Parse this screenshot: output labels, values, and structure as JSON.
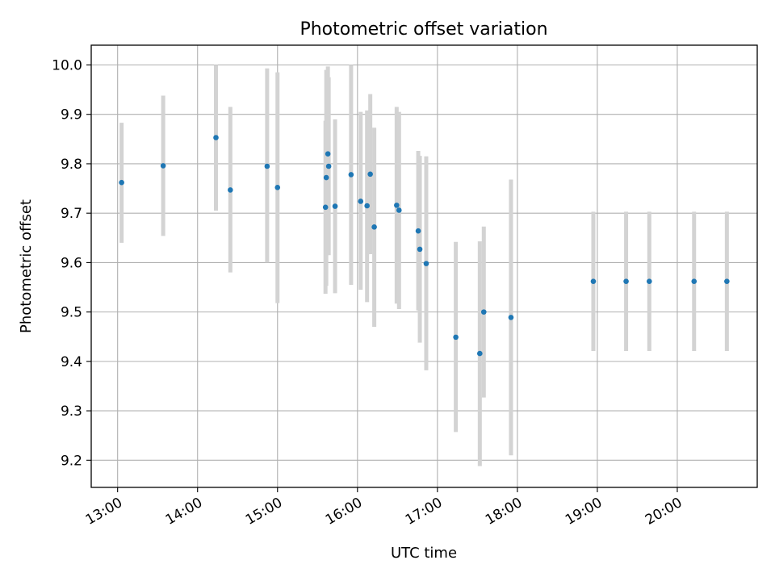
{
  "chart_data": {
    "type": "scatter",
    "title": "Photometric offset variation",
    "xlabel": "UTC time",
    "ylabel": "Photometric offset",
    "x_unit": "hours UTC",
    "xlim": [
      12.67,
      21.0
    ],
    "ylim": [
      9.145,
      10.04
    ],
    "grid": true,
    "x_ticks": [
      {
        "value": 13,
        "label": "13:00"
      },
      {
        "value": 14,
        "label": "14:00"
      },
      {
        "value": 15,
        "label": "15:00"
      },
      {
        "value": 16,
        "label": "16:00"
      },
      {
        "value": 17,
        "label": "17:00"
      },
      {
        "value": 18,
        "label": "18:00"
      },
      {
        "value": 19,
        "label": "19:00"
      },
      {
        "value": 20,
        "label": "20:00"
      }
    ],
    "y_ticks": [
      {
        "value": 9.2,
        "label": "9.2"
      },
      {
        "value": 9.3,
        "label": "9.3"
      },
      {
        "value": 9.4,
        "label": "9.4"
      },
      {
        "value": 9.5,
        "label": "9.5"
      },
      {
        "value": 9.6,
        "label": "9.6"
      },
      {
        "value": 9.7,
        "label": "9.7"
      },
      {
        "value": 9.8,
        "label": "9.8"
      },
      {
        "value": 9.9,
        "label": "9.9"
      },
      {
        "value": 10.0,
        "label": "10.0"
      }
    ],
    "colors": {
      "point": "#1f77b4",
      "errorbar": "#d3d3d3",
      "grid": "#b0b0b0",
      "axes": "#000000"
    },
    "series": [
      {
        "name": "offset",
        "points": [
          {
            "x": 13.05,
            "y": 9.762,
            "ylo": 9.64,
            "yhi": 9.883
          },
          {
            "x": 13.57,
            "y": 9.796,
            "ylo": 9.654,
            "yhi": 9.938
          },
          {
            "x": 14.23,
            "y": 9.853,
            "ylo": 9.705,
            "yhi": 10.0
          },
          {
            "x": 14.41,
            "y": 9.747,
            "ylo": 9.58,
            "yhi": 9.915
          },
          {
            "x": 14.87,
            "y": 9.795,
            "ylo": 9.6,
            "yhi": 9.993
          },
          {
            "x": 15.0,
            "y": 9.752,
            "ylo": 9.518,
            "yhi": 9.985
          },
          {
            "x": 15.6,
            "y": 9.712,
            "ylo": 9.537,
            "yhi": 9.887
          },
          {
            "x": 15.61,
            "y": 9.772,
            "ylo": 9.553,
            "yhi": 9.99
          },
          {
            "x": 15.63,
            "y": 9.82,
            "ylo": 9.65,
            "yhi": 9.997
          },
          {
            "x": 15.64,
            "y": 9.795,
            "ylo": 9.615,
            "yhi": 9.975
          },
          {
            "x": 15.72,
            "y": 9.714,
            "ylo": 9.538,
            "yhi": 9.89
          },
          {
            "x": 15.92,
            "y": 9.778,
            "ylo": 9.555,
            "yhi": 10.0
          },
          {
            "x": 16.04,
            "y": 9.724,
            "ylo": 9.545,
            "yhi": 9.905
          },
          {
            "x": 16.12,
            "y": 9.715,
            "ylo": 9.52,
            "yhi": 9.908
          },
          {
            "x": 16.16,
            "y": 9.779,
            "ylo": 9.617,
            "yhi": 9.941
          },
          {
            "x": 16.21,
            "y": 9.672,
            "ylo": 9.47,
            "yhi": 9.873
          },
          {
            "x": 16.49,
            "y": 9.716,
            "ylo": 9.517,
            "yhi": 9.915
          },
          {
            "x": 16.52,
            "y": 9.706,
            "ylo": 9.506,
            "yhi": 9.905
          },
          {
            "x": 16.76,
            "y": 9.664,
            "ylo": 9.503,
            "yhi": 9.826
          },
          {
            "x": 16.78,
            "y": 9.627,
            "ylo": 9.438,
            "yhi": 9.816
          },
          {
            "x": 16.86,
            "y": 9.598,
            "ylo": 9.382,
            "yhi": 9.815
          },
          {
            "x": 17.23,
            "y": 9.449,
            "ylo": 9.257,
            "yhi": 9.642
          },
          {
            "x": 17.53,
            "y": 9.416,
            "ylo": 9.188,
            "yhi": 9.643
          },
          {
            "x": 17.58,
            "y": 9.5,
            "ylo": 9.327,
            "yhi": 9.673
          },
          {
            "x": 17.92,
            "y": 9.489,
            "ylo": 9.21,
            "yhi": 9.768
          },
          {
            "x": 18.95,
            "y": 9.562,
            "ylo": 9.421,
            "yhi": 9.703
          },
          {
            "x": 19.36,
            "y": 9.562,
            "ylo": 9.421,
            "yhi": 9.703
          },
          {
            "x": 19.65,
            "y": 9.562,
            "ylo": 9.421,
            "yhi": 9.703
          },
          {
            "x": 20.21,
            "y": 9.562,
            "ylo": 9.421,
            "yhi": 9.703
          },
          {
            "x": 20.62,
            "y": 9.562,
            "ylo": 9.421,
            "yhi": 9.703
          }
        ]
      }
    ]
  }
}
